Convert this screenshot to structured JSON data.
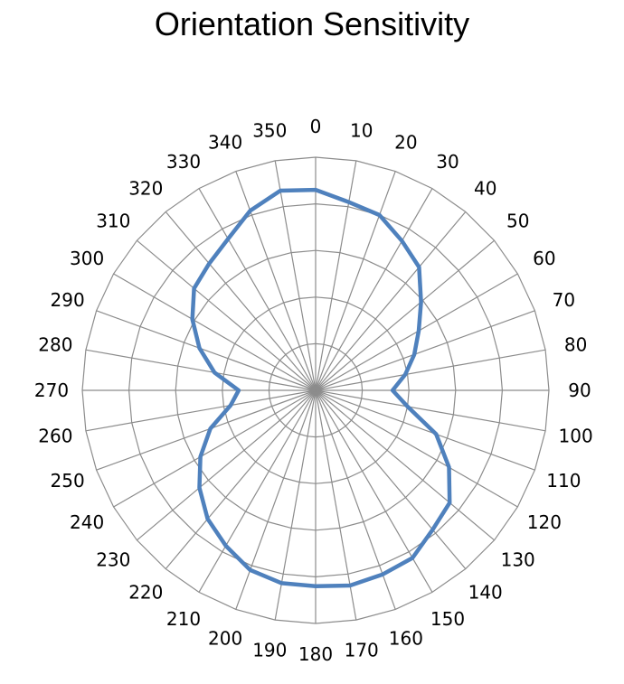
{
  "chart_data": {
    "type": "radar",
    "title": "Orientation Sensitivity",
    "angle_unit": "degrees",
    "angles": [
      0,
      10,
      20,
      30,
      40,
      50,
      60,
      70,
      80,
      90,
      100,
      110,
      120,
      130,
      140,
      150,
      160,
      170,
      180,
      190,
      200,
      210,
      220,
      230,
      240,
      250,
      260,
      270,
      280,
      290,
      300,
      310,
      320,
      330,
      340,
      350
    ],
    "tick_labels": [
      "0",
      "10",
      "20",
      "30",
      "40",
      "50",
      "60",
      "70",
      "80",
      "90",
      "100",
      "110",
      "120",
      "130",
      "140",
      "150",
      "160",
      "170",
      "180",
      "190",
      "200",
      "210",
      "220",
      "230",
      "240",
      "250",
      "260",
      "270",
      "280",
      "290",
      "300",
      "310",
      "320",
      "330",
      "340",
      "350"
    ],
    "rlim": [
      0,
      5
    ],
    "rings": 5,
    "series": [
      {
        "values": [
          4.3,
          4.1,
          4.0,
          3.7,
          3.45,
          2.95,
          2.55,
          2.25,
          1.95,
          1.65,
          2.0,
          2.75,
          3.3,
          3.75,
          3.9,
          4.15,
          4.2,
          4.25,
          4.2,
          4.2,
          4.1,
          3.85,
          3.6,
          3.25,
          2.85,
          2.4,
          1.85,
          1.65,
          2.2,
          2.65,
          3.05,
          3.4,
          3.55,
          3.75,
          4.1,
          4.35
        ],
        "color": "#4f81bd"
      }
    ],
    "grid": true,
    "legend": "none"
  }
}
